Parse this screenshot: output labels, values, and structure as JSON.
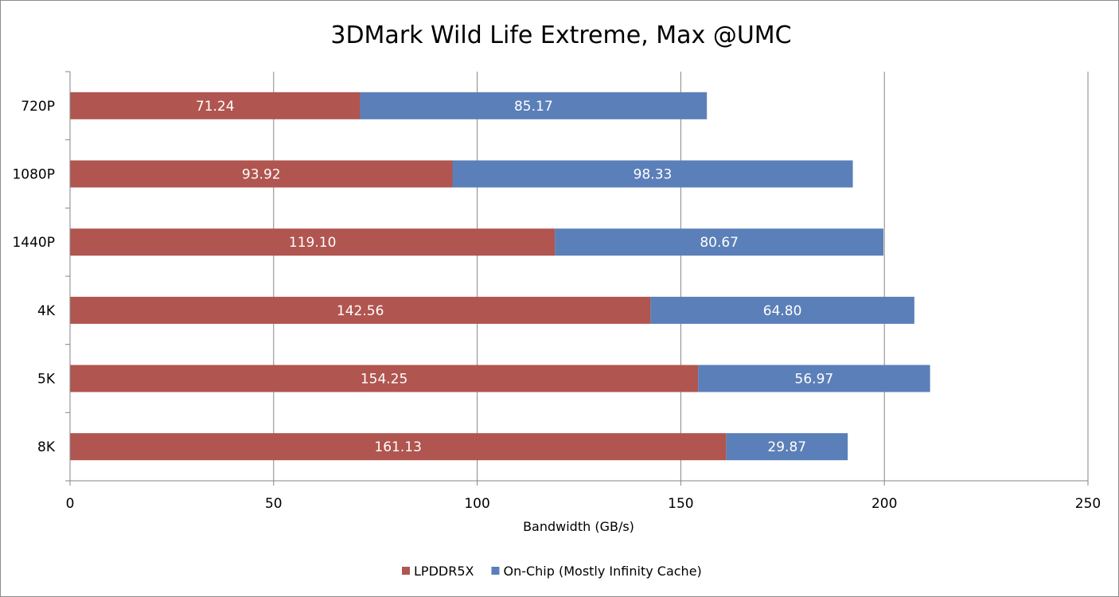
{
  "chart_data": {
    "type": "bar",
    "orientation": "horizontal",
    "stacked": true,
    "title": "3DMark Wild Life Extreme, Max @UMC",
    "xlabel": "Bandwidth (GB/s)",
    "ylabel": "",
    "xlim": [
      0,
      250
    ],
    "xticks": [
      "0",
      "50",
      "100",
      "150",
      "200",
      "250"
    ],
    "grid": true,
    "legend_position": "bottom",
    "categories": [
      "720P",
      "1080P",
      "1440P",
      "4K",
      "5K",
      "8K"
    ],
    "series": [
      {
        "name": "LPDDR5X",
        "color": "#b0554f",
        "values": [
          71.24,
          93.92,
          119.1,
          142.56,
          154.25,
          161.13
        ],
        "labels": [
          "71.24",
          "93.92",
          "119.10",
          "142.56",
          "154.25",
          "161.13"
        ]
      },
      {
        "name": "On-Chip (Mostly Infinity Cache)",
        "color": "#5b7fb8",
        "values": [
          85.17,
          98.33,
          80.67,
          64.8,
          56.97,
          29.87
        ],
        "labels": [
          "85.17",
          "98.33",
          "80.67",
          "64.80",
          "56.97",
          "29.87"
        ]
      }
    ]
  }
}
